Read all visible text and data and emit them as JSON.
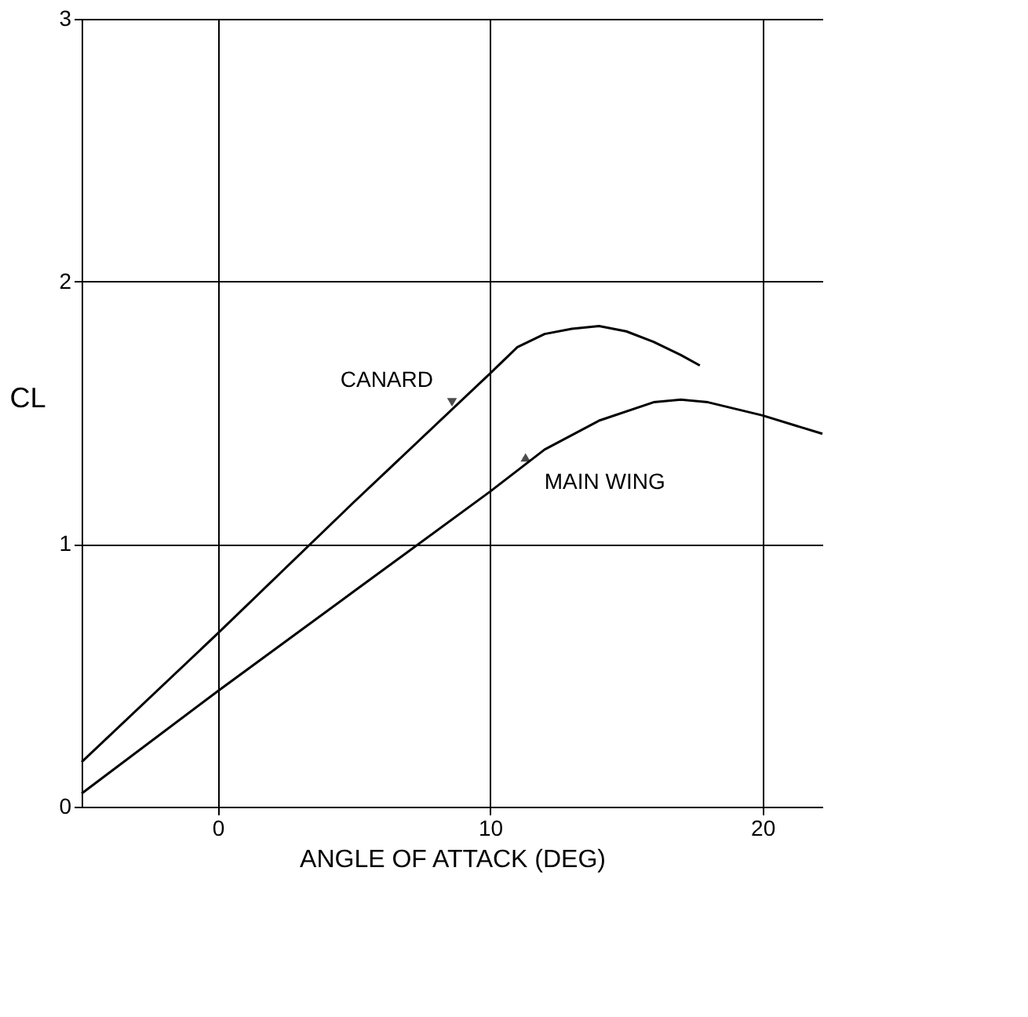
{
  "chart_data": {
    "type": "line",
    "xlabel": "ANGLE OF ATTACK (DEG)",
    "ylabel": "CL",
    "series": [
      {
        "color": "#000000",
        "x": [
          -5,
          0,
          5,
          10,
          11,
          12,
          13,
          14,
          15,
          16,
          17,
          17.7
        ],
        "values": [
          0.17,
          0.66,
          1.16,
          1.65,
          1.75,
          1.8,
          1.82,
          1.83,
          1.81,
          1.77,
          1.72,
          1.68
        ]
      },
      {
        "color": "#000000",
        "x": [
          -5,
          0,
          5,
          10,
          12,
          14,
          16,
          17,
          18,
          20,
          22.2
        ],
        "values": [
          0.05,
          0.44,
          0.82,
          1.2,
          1.36,
          1.47,
          1.54,
          1.55,
          1.54,
          1.49,
          1.42
        ]
      }
    ],
    "annotations": [
      {
        "text": "CANARD",
        "x": 8.6,
        "y": 1.54
      },
      {
        "text": "MAIN WING",
        "x": 11.3,
        "y": 1.33
      }
    ],
    "xlim": [
      -5,
      22.2
    ],
    "ylim": [
      0,
      3
    ],
    "xticks": [
      0,
      10,
      20
    ],
    "yticks": [
      0,
      1,
      2,
      3
    ],
    "grid": true,
    "legend": false,
    "marker": "none",
    "line_style": "solid"
  }
}
